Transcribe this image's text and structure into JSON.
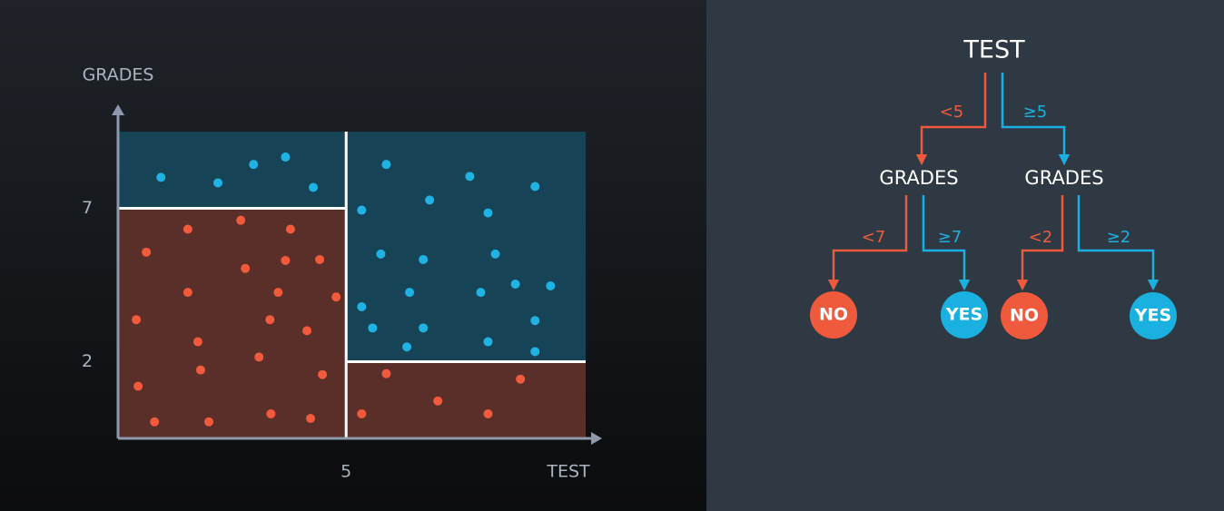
{
  "chart_data": {
    "type": "scatter",
    "xlabel": "TEST",
    "ylabel": "GRADES",
    "xlim": [
      0,
      10.25
    ],
    "ylim": [
      -0.5,
      9.5
    ],
    "xticks": [
      5
    ],
    "yticks": [
      7,
      2
    ],
    "regions": [
      {
        "color": "#164356",
        "x": [
          0,
          5
        ],
        "y": [
          7,
          9.5
        ]
      },
      {
        "color": "#5a2e29",
        "x": [
          0,
          5
        ],
        "y": [
          -0.5,
          7
        ]
      },
      {
        "color": "#164356",
        "x": [
          5,
          10.25
        ],
        "y": [
          2,
          9.5
        ]
      },
      {
        "color": "#5a2e29",
        "x": [
          5,
          10.25
        ],
        "y": [
          -0.5,
          2
        ]
      }
    ],
    "series": [
      {
        "color": "#1fb3e5",
        "x": [
          0.94,
          2.19,
          2.97,
          3.67,
          4.28,
          5.88,
          7.71,
          9.14,
          6.83,
          5.34,
          8.11,
          5.76,
          6.69,
          8.27,
          5.34,
          6.39,
          7.95,
          8.71,
          9.48,
          5.58,
          6.69,
          9.14,
          6.33,
          8.11,
          9.14
        ],
        "y": [
          8.01,
          7.83,
          8.43,
          8.67,
          7.68,
          8.43,
          8.04,
          7.71,
          7.27,
          6.94,
          6.85,
          5.51,
          5.33,
          5.51,
          3.79,
          4.26,
          4.26,
          4.53,
          4.47,
          3.1,
          3.1,
          3.34,
          2.48,
          2.65,
          2.33
        ]
      },
      {
        "color": "#f25a3c",
        "x": [
          1.53,
          2.69,
          3.78,
          0.62,
          2.79,
          3.67,
          4.42,
          1.53,
          3.51,
          4.78,
          0.4,
          3.33,
          4.14,
          1.75,
          3.09,
          1.81,
          4.48,
          0.44,
          0.8,
          1.99,
          3.35,
          4.22,
          5.88,
          8.82,
          7.01,
          5.34,
          8.11
        ],
        "y": [
          6.32,
          6.61,
          6.32,
          5.57,
          5.04,
          5.3,
          5.33,
          4.26,
          4.26,
          4.11,
          3.37,
          3.37,
          3.01,
          2.65,
          2.15,
          1.73,
          1.58,
          1.2,
          0.04,
          0.04,
          0.3,
          0.15,
          1.61,
          1.43,
          0.72,
          0.3,
          0.3
        ]
      }
    ]
  },
  "tree": {
    "nodes": [
      "TEST",
      "GRADES",
      "GRADES",
      "NO",
      "YES",
      "NO",
      "YES"
    ],
    "edges": [
      "<5",
      "≥5",
      "<7",
      "≥7",
      "<2",
      "≥2"
    ]
  }
}
